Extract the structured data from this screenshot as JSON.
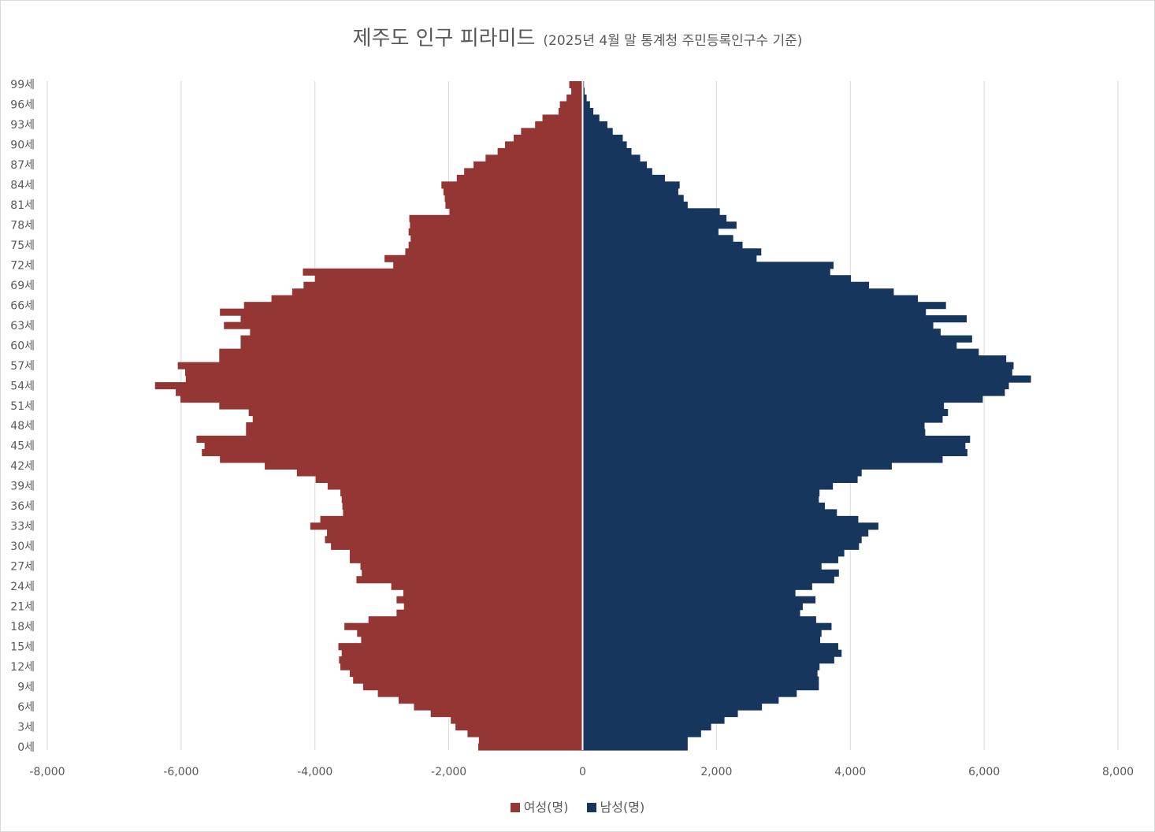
{
  "colors": {
    "female": "#943634",
    "male": "#17365D",
    "grid": "#d9d9d9",
    "text": "#595959"
  },
  "chart_data": {
    "type": "bar",
    "orientation": "horizontal",
    "title": "제주도 인구 피라미드",
    "subtitle": "(2025년 4월 말 통계청 주민등록인구수 기준)",
    "xlim": [
      -8000,
      8000
    ],
    "x_ticks": [
      -8000,
      -6000,
      -4000,
      -2000,
      0,
      2000,
      4000,
      6000,
      8000
    ],
    "x_tick_labels": [
      "-8,000",
      "-6,000",
      "-4,000",
      "-2,000",
      "0",
      "2,000",
      "4,000",
      "6,000",
      "8,000"
    ],
    "grid": true,
    "legend_position": "bottom",
    "y_tick_labels": [
      "0세",
      "3세",
      "6세",
      "9세",
      "12세",
      "15세",
      "18세",
      "21세",
      "24세",
      "27세",
      "30세",
      "33세",
      "36세",
      "39세",
      "42세",
      "45세",
      "48세",
      "51세",
      "54세",
      "57세",
      "60세",
      "63세",
      "66세",
      "69세",
      "72세",
      "75세",
      "78세",
      "81세",
      "84세",
      "87세",
      "90세",
      "93세",
      "96세",
      "99세"
    ],
    "categories": [
      0,
      1,
      2,
      3,
      4,
      5,
      6,
      7,
      8,
      9,
      10,
      11,
      12,
      13,
      14,
      15,
      16,
      17,
      18,
      19,
      20,
      21,
      22,
      23,
      24,
      25,
      26,
      27,
      28,
      29,
      30,
      31,
      32,
      33,
      34,
      35,
      36,
      37,
      38,
      39,
      40,
      41,
      42,
      43,
      44,
      45,
      46,
      47,
      48,
      49,
      50,
      51,
      52,
      53,
      54,
      55,
      56,
      57,
      58,
      59,
      60,
      61,
      62,
      63,
      64,
      65,
      66,
      67,
      68,
      69,
      70,
      71,
      72,
      73,
      74,
      75,
      76,
      77,
      78,
      79,
      80,
      81,
      82,
      83,
      84,
      85,
      86,
      87,
      88,
      89,
      90,
      91,
      92,
      93,
      94,
      95,
      96,
      97,
      98,
      99
    ],
    "series": [
      {
        "name": "여성(명)",
        "values": [
          1560,
          1550,
          1720,
          1900,
          1970,
          2270,
          2520,
          2750,
          3060,
          3280,
          3430,
          3480,
          3620,
          3640,
          3600,
          3650,
          3310,
          3370,
          3560,
          3200,
          2780,
          2670,
          2780,
          2680,
          2860,
          3380,
          3300,
          3320,
          3480,
          3480,
          3760,
          3850,
          3820,
          4070,
          3920,
          3580,
          3590,
          3600,
          3620,
          3810,
          3990,
          4270,
          4750,
          5420,
          5690,
          5650,
          5770,
          5030,
          5030,
          4930,
          4990,
          5430,
          6010,
          6080,
          6390,
          5930,
          5940,
          6050,
          5430,
          5430,
          5110,
          5110,
          4970,
          5360,
          5110,
          5420,
          5060,
          4650,
          4340,
          4170,
          4000,
          4180,
          2830,
          2960,
          2650,
          2600,
          2570,
          2600,
          2580,
          2590,
          1990,
          2050,
          2060,
          2080,
          2110,
          1880,
          1770,
          1630,
          1450,
          1270,
          1160,
          1030,
          920,
          710,
          600,
          360,
          340,
          240,
          170,
          200
        ]
      },
      {
        "name": "남성(명)",
        "values": [
          1570,
          1570,
          1770,
          1920,
          2120,
          2320,
          2680,
          2930,
          3200,
          3530,
          3530,
          3510,
          3540,
          3760,
          3870,
          3820,
          3550,
          3570,
          3720,
          3490,
          3250,
          3290,
          3480,
          3180,
          3430,
          3760,
          3830,
          3570,
          3820,
          3910,
          4130,
          4170,
          4270,
          4420,
          4120,
          3800,
          3620,
          3530,
          3540,
          3740,
          4110,
          4170,
          4620,
          5380,
          5750,
          5720,
          5790,
          5120,
          5110,
          5380,
          5460,
          5400,
          5980,
          6310,
          6370,
          6700,
          6420,
          6440,
          6330,
          5920,
          5590,
          5820,
          5350,
          5240,
          5740,
          5130,
          5430,
          5010,
          4650,
          4280,
          4010,
          3700,
          3750,
          2600,
          2670,
          2390,
          2250,
          2030,
          2300,
          2150,
          2050,
          1570,
          1510,
          1430,
          1450,
          1230,
          1040,
          960,
          860,
          730,
          660,
          600,
          450,
          370,
          250,
          160,
          110,
          60,
          30,
          20
        ]
      }
    ]
  }
}
